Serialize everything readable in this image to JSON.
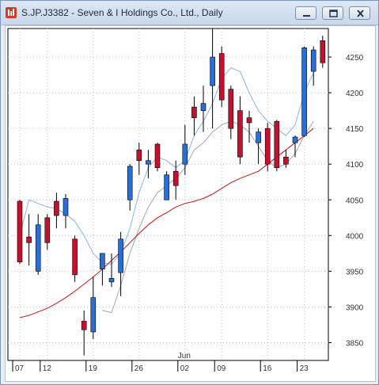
{
  "window": {
    "title": "S.JP.J3382 - Seven & I Holdings Co., Ltd., Daily",
    "icon": "chart-app-icon",
    "controls": [
      "minimize-icon",
      "restore-icon",
      "close-icon"
    ]
  },
  "chart_data": {
    "type": "candlestick",
    "ylim": [
      3825,
      4290
    ],
    "y_ticks": [
      3850,
      3900,
      3950,
      4000,
      4050,
      4100,
      4150,
      4200,
      4250
    ],
    "x_ticks": [
      {
        "label": "07",
        "index": 0
      },
      {
        "label": "12",
        "index": 3
      },
      {
        "label": "19",
        "index": 8
      },
      {
        "label": "26",
        "index": 13
      },
      {
        "label": "02",
        "index": 18
      },
      {
        "label": "09",
        "index": 22
      },
      {
        "label": "16",
        "index": 27
      },
      {
        "label": "23",
        "index": 31
      }
    ],
    "month_label": {
      "text": "Jun",
      "index": 18
    },
    "colors": {
      "up": "#2a6fd6",
      "down": "#c8102e",
      "ma_fast": "#8ab4e8",
      "ma_slow": "#cc1111",
      "ma_mid": "#a0a8b0",
      "grid": "#c0c0c0"
    },
    "candles": [
      {
        "o": 4048,
        "h": 4050,
        "l": 3960,
        "c": 3963
      },
      {
        "o": 3998,
        "h": 4030,
        "l": 3958,
        "c": 3990
      },
      {
        "o": 3950,
        "h": 4030,
        "l": 3945,
        "c": 4015
      },
      {
        "o": 4025,
        "h": 4030,
        "l": 3980,
        "c": 3990
      },
      {
        "o": 4048,
        "h": 4060,
        "l": 4010,
        "c": 4028
      },
      {
        "o": 4028,
        "h": 4058,
        "l": 4010,
        "c": 4052
      },
      {
        "o": 3995,
        "h": 4000,
        "l": 3935,
        "c": 3945
      },
      {
        "o": 3880,
        "h": 3895,
        "l": 3832,
        "c": 3868
      },
      {
        "o": 3865,
        "h": 3942,
        "l": 3855,
        "c": 3913
      },
      {
        "o": 3953,
        "h": 3975,
        "l": 3930,
        "c": 3975
      },
      {
        "o": 3935,
        "h": 3975,
        "l": 3928,
        "c": 3940
      },
      {
        "o": 3948,
        "h": 4005,
        "l": 3915,
        "c": 3995
      },
      {
        "o": 4050,
        "h": 4100,
        "l": 4035,
        "c": 4097
      },
      {
        "o": 4120,
        "h": 4130,
        "l": 4085,
        "c": 4105
      },
      {
        "o": 4100,
        "h": 4120,
        "l": 4080,
        "c": 4105
      },
      {
        "o": 4128,
        "h": 4130,
        "l": 4090,
        "c": 4095
      },
      {
        "o": 4050,
        "h": 4090,
        "l": 4050,
        "c": 4085
      },
      {
        "o": 4090,
        "h": 4105,
        "l": 4050,
        "c": 4070
      },
      {
        "o": 4100,
        "h": 4155,
        "l": 4085,
        "c": 4128
      },
      {
        "o": 4180,
        "h": 4195,
        "l": 4140,
        "c": 4165
      },
      {
        "o": 4175,
        "h": 4210,
        "l": 4145,
        "c": 4185
      },
      {
        "o": 4210,
        "h": 4290,
        "l": 4150,
        "c": 4250
      },
      {
        "o": 4255,
        "h": 4265,
        "l": 4180,
        "c": 4190
      },
      {
        "o": 4205,
        "h": 4210,
        "l": 4135,
        "c": 4150
      },
      {
        "o": 4175,
        "h": 4195,
        "l": 4100,
        "c": 4110
      },
      {
        "o": 4165,
        "h": 4175,
        "l": 4130,
        "c": 4158
      },
      {
        "o": 4130,
        "h": 4150,
        "l": 4100,
        "c": 4145
      },
      {
        "o": 4150,
        "h": 4158,
        "l": 4090,
        "c": 4100
      },
      {
        "o": 4160,
        "h": 4162,
        "l": 4090,
        "c": 4095
      },
      {
        "o": 4110,
        "h": 4120,
        "l": 4095,
        "c": 4100
      },
      {
        "o": 4130,
        "h": 4140,
        "l": 4110,
        "c": 4138
      },
      {
        "o": 4140,
        "h": 4265,
        "l": 4138,
        "c": 4263
      }
    ],
    "extra_candles": [
      {
        "o": 4230,
        "h": 4265,
        "l": 4210,
        "c": 4260
      },
      {
        "o": 4273,
        "h": 4280,
        "l": 4235,
        "c": 4242
      }
    ],
    "ma_fast": [
      4000,
      4050,
      4045,
      4040,
      4038,
      4030,
      4020,
      4000,
      3975,
      3962,
      3960,
      3975,
      4010,
      4060,
      4095,
      4110,
      4105,
      4095,
      4105,
      4140,
      4160,
      4185,
      4220,
      4235,
      4230,
      4200,
      4175,
      4160,
      4150,
      4140,
      4155,
      4200,
      4228
    ],
    "ma_slow": [
      3885,
      3888,
      3893,
      3898,
      3905,
      3913,
      3922,
      3932,
      3942,
      3953,
      3965,
      3977,
      3990,
      4003,
      4015,
      4025,
      4032,
      4040,
      4045,
      4048,
      4052,
      4058,
      4066,
      4074,
      4080,
      4085,
      4090,
      4100,
      4110,
      4120,
      4130,
      4140,
      4150
    ],
    "ma_mid": [
      null,
      null,
      null,
      null,
      null,
      null,
      null,
      null,
      null,
      3895,
      3892,
      3930,
      3975,
      4010,
      4040,
      4060,
      4070,
      4080,
      4095,
      4120,
      4130,
      4145,
      4155,
      4160,
      4155,
      4145,
      4125,
      4105,
      4095,
      4100,
      4115,
      4140,
      4160
    ]
  }
}
